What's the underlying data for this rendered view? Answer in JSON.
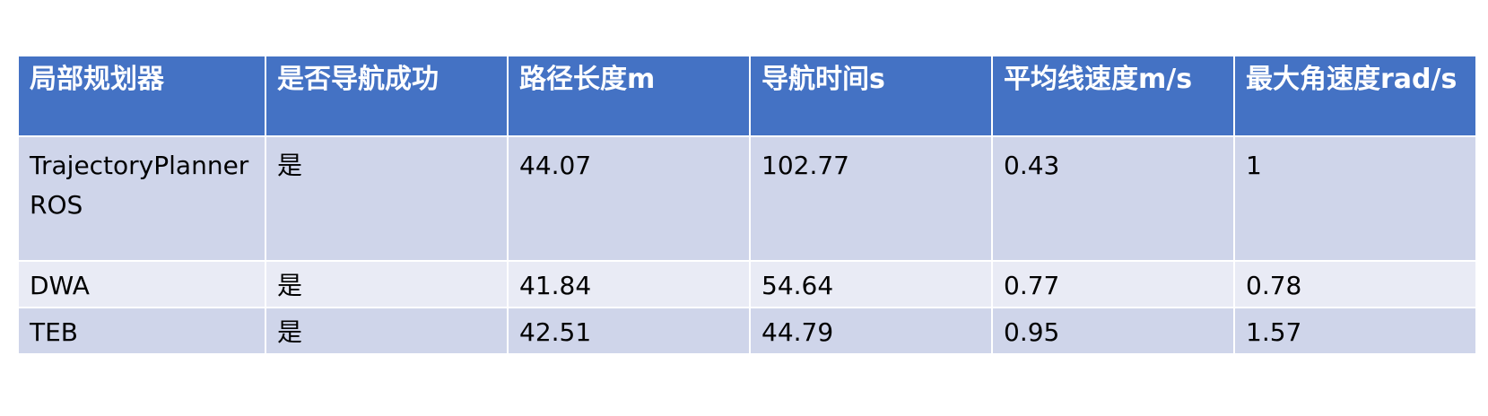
{
  "table": {
    "headers": [
      "局部规划器",
      "是否导航成功",
      "路径长度m",
      "导航时间s",
      "平均线速度m/s",
      "最大角速度rad/s"
    ],
    "rows": [
      [
        "TrajectoryPlannerROS",
        "是",
        "44.07",
        "102.77",
        "0.43",
        "1"
      ],
      [
        "DWA",
        "是",
        "41.84",
        "54.64",
        "0.77",
        "0.78"
      ],
      [
        "TEB",
        "是",
        "42.51",
        "44.79",
        "0.95",
        "1.57"
      ]
    ]
  },
  "colors": {
    "header_bg": "#4472c4",
    "row_odd_bg": "#cfd5ea",
    "row_even_bg": "#e9ebf5",
    "header_text": "#ffffff",
    "cell_text": "#000000"
  }
}
